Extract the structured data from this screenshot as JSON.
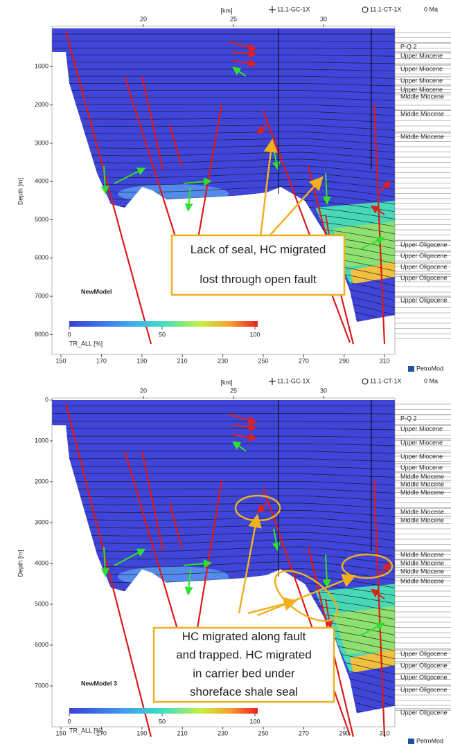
{
  "panels": [
    {
      "axis_title_top": "[km]",
      "top_ticks": [
        20,
        25,
        30
      ],
      "wells": [
        "11.1-GC-1X",
        "11.1-CT-1X"
      ],
      "age": "0 Ma",
      "y_axis_title": "Depth [m]",
      "y_ticks": [
        1000,
        2000,
        3000,
        4000,
        5000,
        6000,
        7000,
        8000
      ],
      "x_ticks": [
        150,
        170,
        190,
        210,
        230,
        250,
        270,
        290,
        310
      ],
      "layers": [
        "P-Q 2",
        "Upper Miocene",
        "Upper Miocene",
        "Upper Miocene",
        "Upper Miocene",
        "Middle Miocene",
        "Middle Miocene",
        "Middle Miocene",
        "Upper Oligocene",
        "Upper Oligocene",
        "Upper Oligocene",
        "Upper Oligocene",
        "Upper Oligocene"
      ],
      "model": "NewModel",
      "colorbar_ticks": [
        0,
        50,
        100
      ],
      "colorbar_label": "TR_ALL [%]",
      "callout": [
        "Lack of seal, HC migrated",
        "lost through open fault"
      ],
      "logo": "PetroMod"
    },
    {
      "axis_title_top": "[km]",
      "top_ticks": [
        20,
        25,
        30
      ],
      "wells": [
        "11.1-GC-1X",
        "11.1-CT-1X"
      ],
      "age": "0 Ma",
      "y_axis_title": "Depth [m]",
      "y_ticks": [
        0,
        1000,
        2000,
        3000,
        4000,
        5000,
        6000,
        7000
      ],
      "x_ticks": [
        150,
        170,
        190,
        210,
        230,
        250,
        270,
        290,
        310
      ],
      "layers": [
        "P-Q 2",
        "Upper Miocene",
        "Upper Miocene",
        "Upper Miocene",
        "Upper Miocene",
        "Middle Miocene",
        "Middle Miocene",
        "Middle Miocene",
        "Middle Miocene",
        "Middle Miocene",
        "Middle Miocene",
        "Middle Miocene",
        "Middle Miocene",
        "Middle Miocene",
        "Upper Oligocene",
        "Upper Oligocene",
        "Upper Oligocene",
        "Upper Oligocene",
        "Upper Oligocene"
      ],
      "model": "NewModel 3",
      "colorbar_ticks": [
        0,
        50,
        100
      ],
      "colorbar_label": "TR_ALL [%]",
      "callout": [
        "HC migrated along fault",
        "and trapped. HC migrated",
        "in carrier bed under",
        "shoreface shale seal"
      ],
      "logo": "PetroMod"
    }
  ]
}
